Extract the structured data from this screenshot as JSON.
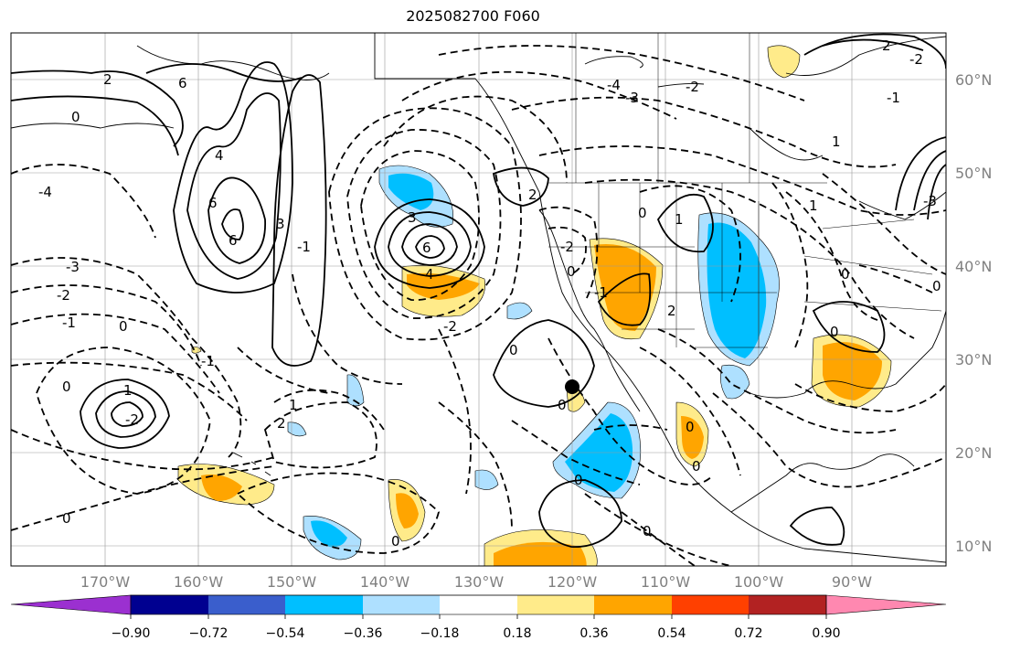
{
  "title": "2025082700 F060",
  "lat_labels": [
    "60°N",
    "50°N",
    "40°N",
    "30°N",
    "20°N",
    "10°N"
  ],
  "lon_labels": [
    "170°W",
    "160°W",
    "150°W",
    "140°W",
    "130°W",
    "120°W",
    "110°W",
    "100°W",
    "90°W"
  ],
  "colorbar": {
    "colors": [
      "#9b30d0",
      "#000090",
      "#3a5ecc",
      "#00bfff",
      "#aee0ff",
      "#ffffff",
      "#ffeb8a",
      "#ffa500",
      "#ff4000",
      "#b22222",
      "#ff88b0"
    ],
    "tick_labels": [
      "−0.90",
      "−0.72",
      "−0.54",
      "−0.36",
      "−0.18",
      "0.18",
      "0.36",
      "0.54",
      "0.72",
      "0.90"
    ]
  },
  "contour_labels": [
    "2",
    "6",
    "0",
    "4",
    "6",
    "6",
    "3",
    "-2",
    "-1",
    "1",
    "0",
    "-3",
    "-2",
    "-1",
    "0",
    "-1",
    "0",
    "1",
    "2",
    "6",
    "3",
    "4",
    "-2",
    "-4",
    "-3",
    "-2",
    "0",
    "2",
    "-2",
    "0",
    "0",
    "0",
    "1",
    "1",
    "-1",
    "0",
    "2",
    "0",
    "1",
    "0",
    "0",
    "0",
    "-4",
    "-3",
    "2",
    "-2",
    "-1",
    "0",
    "0",
    "0"
  ],
  "marker": "location-dot"
}
